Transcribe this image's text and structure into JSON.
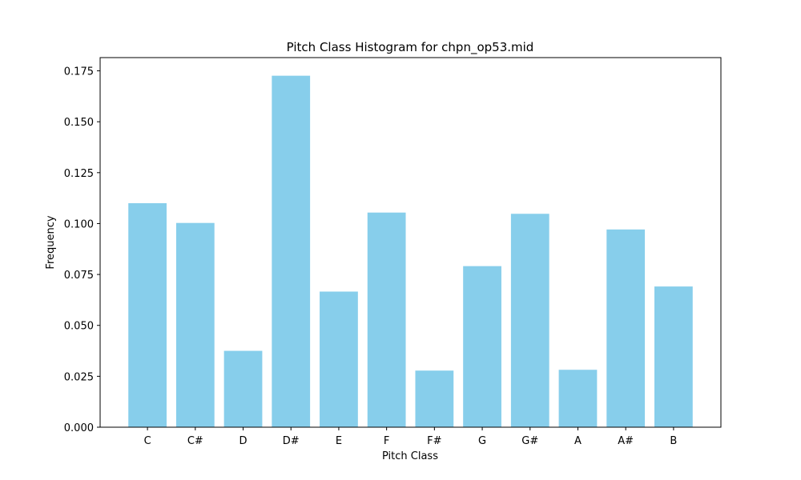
{
  "chart_data": {
    "type": "bar",
    "title": "Pitch Class Histogram for chpn_op53.mid",
    "xlabel": "Pitch Class",
    "ylabel": "Frequency",
    "categories": [
      "C",
      "C#",
      "D",
      "D#",
      "E",
      "F",
      "F#",
      "G",
      "G#",
      "A",
      "A#",
      "B"
    ],
    "values": [
      0.11,
      0.1003,
      0.0375,
      0.1726,
      0.0666,
      0.1054,
      0.0278,
      0.0791,
      0.1048,
      0.0282,
      0.0971,
      0.0691
    ],
    "ylim": [
      0,
      0.1815
    ],
    "yticks": [
      0,
      0.025,
      0.05,
      0.075,
      0.1,
      0.125,
      0.15,
      0.175
    ],
    "ytick_labels": [
      "0.000",
      "0.025",
      "0.050",
      "0.075",
      "0.100",
      "0.125",
      "0.150",
      "0.175"
    ],
    "bar_color": "#87ceeb",
    "grid": false,
    "legend": "none"
  }
}
